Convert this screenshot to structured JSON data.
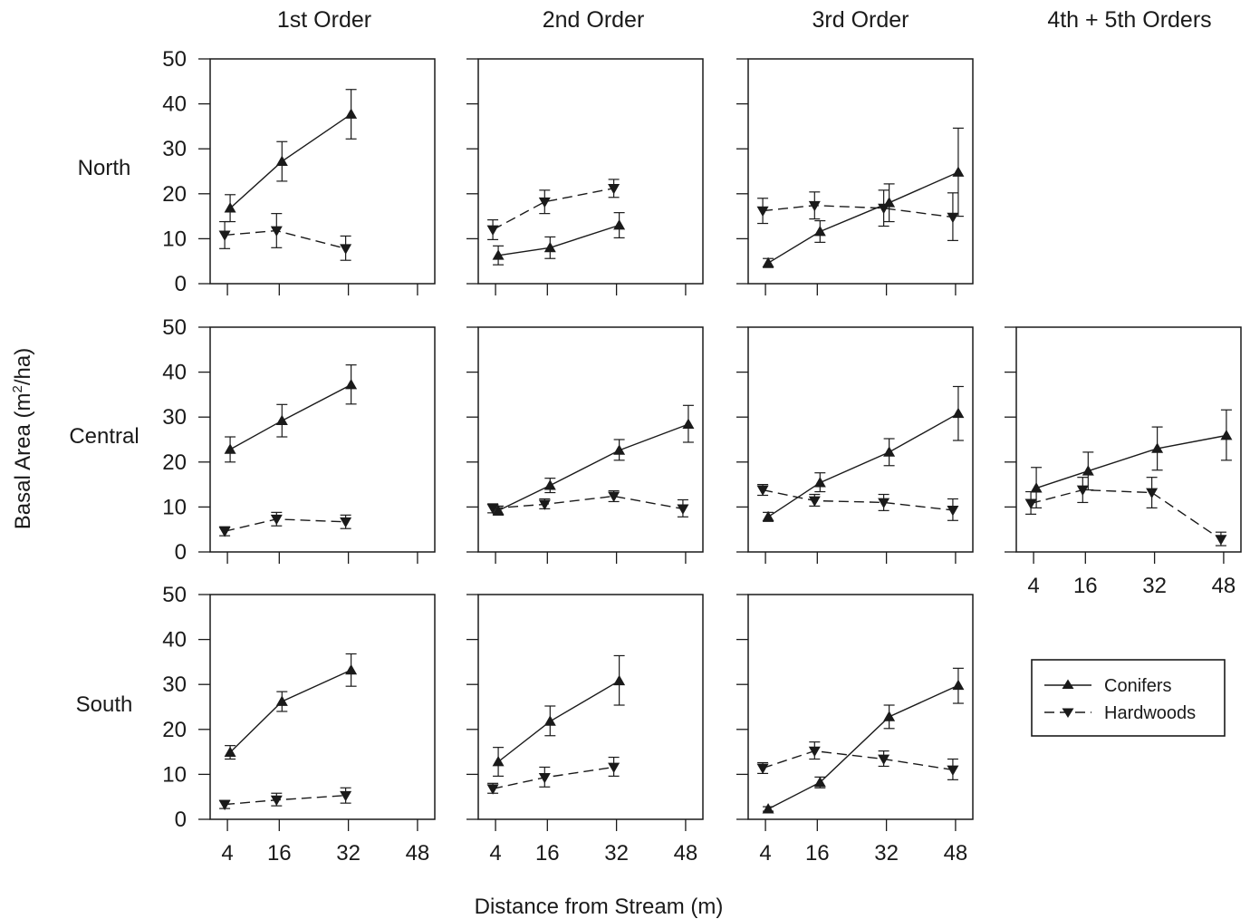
{
  "figure": {
    "xlabel": "Distance from Stream (m)",
    "ylabel": "Basal Area (m²/ha)",
    "ylabel_main": "Basal Area (m",
    "ylabel_sup": "2",
    "ylabel_end": "/ha)",
    "legend": {
      "conifers": "Conifers",
      "hardwoods": "Hardwoods",
      "placement": "bottom-right"
    }
  },
  "columns": [
    "1st Order",
    "2nd Order",
    "3rd Order",
    "4th + 5th Orders"
  ],
  "rows": [
    "North",
    "Central",
    "South"
  ],
  "chart_data": {
    "type": "line",
    "layout": "faceted grid (rows: region, columns: stream order)",
    "x_ticks": [
      4,
      16,
      32,
      48
    ],
    "y_ticks": [
      0,
      10,
      20,
      30,
      40,
      50
    ],
    "ylim": [
      0,
      50
    ],
    "xlim": [
      0,
      52
    ],
    "grid": false,
    "error_bars": true,
    "series_names": [
      "Conifers",
      "Hardwoods"
    ],
    "panels": [
      {
        "row": "North",
        "column": "1st Order",
        "conifers": [
          {
            "x": 4,
            "y": 16.8,
            "lo": 13.8,
            "hi": 19.8
          },
          {
            "x": 16,
            "y": 27.2,
            "lo": 22.8,
            "hi": 31.6
          },
          {
            "x": 32,
            "y": 37.7,
            "lo": 32.2,
            "hi": 43.2
          }
        ],
        "hardwoods": [
          {
            "x": 4,
            "y": 10.8,
            "lo": 7.8,
            "hi": 13.8
          },
          {
            "x": 16,
            "y": 11.8,
            "lo": 8.0,
            "hi": 15.6
          },
          {
            "x": 32,
            "y": 7.8,
            "lo": 5.2,
            "hi": 10.6
          }
        ]
      },
      {
        "row": "North",
        "column": "2nd Order",
        "conifers": [
          {
            "x": 4,
            "y": 6.3,
            "lo": 4.2,
            "hi": 8.4
          },
          {
            "x": 16,
            "y": 8.0,
            "lo": 5.6,
            "hi": 10.4
          },
          {
            "x": 32,
            "y": 13.0,
            "lo": 10.2,
            "hi": 15.8
          }
        ],
        "hardwoods": [
          {
            "x": 4,
            "y": 12.0,
            "lo": 9.8,
            "hi": 14.2
          },
          {
            "x": 16,
            "y": 18.2,
            "lo": 15.6,
            "hi": 20.8
          },
          {
            "x": 32,
            "y": 21.2,
            "lo": 19.2,
            "hi": 23.2
          }
        ]
      },
      {
        "row": "North",
        "column": "3rd Order",
        "conifers": [
          {
            "x": 4,
            "y": 4.6,
            "lo": 3.6,
            "hi": 5.6
          },
          {
            "x": 16,
            "y": 11.6,
            "lo": 9.2,
            "hi": 14.0
          },
          {
            "x": 32,
            "y": 18.0,
            "lo": 13.8,
            "hi": 22.2
          },
          {
            "x": 48,
            "y": 24.8,
            "lo": 15.0,
            "hi": 34.6
          }
        ],
        "hardwoods": [
          {
            "x": 4,
            "y": 16.2,
            "lo": 13.4,
            "hi": 19.0
          },
          {
            "x": 16,
            "y": 17.4,
            "lo": 14.4,
            "hi": 20.4
          },
          {
            "x": 32,
            "y": 16.8,
            "lo": 12.8,
            "hi": 20.8
          },
          {
            "x": 48,
            "y": 14.8,
            "lo": 9.6,
            "hi": 20.2
          }
        ]
      },
      {
        "row": "Central",
        "column": "1st Order",
        "conifers": [
          {
            "x": 4,
            "y": 22.8,
            "lo": 20.0,
            "hi": 25.6
          },
          {
            "x": 16,
            "y": 29.2,
            "lo": 25.6,
            "hi": 32.8
          },
          {
            "x": 32,
            "y": 37.2,
            "lo": 32.9,
            "hi": 41.6
          }
        ],
        "hardwoods": [
          {
            "x": 4,
            "y": 4.6,
            "lo": 3.6,
            "hi": 5.6
          },
          {
            "x": 16,
            "y": 7.3,
            "lo": 5.8,
            "hi": 8.8
          },
          {
            "x": 32,
            "y": 6.7,
            "lo": 5.2,
            "hi": 8.2
          }
        ]
      },
      {
        "row": "Central",
        "column": "2nd Order",
        "conifers": [
          {
            "x": 4,
            "y": 9.2,
            "lo": 8.2,
            "hi": 10.2
          },
          {
            "x": 16,
            "y": 14.8,
            "lo": 13.2,
            "hi": 16.4
          },
          {
            "x": 32,
            "y": 22.6,
            "lo": 20.4,
            "hi": 25.0
          },
          {
            "x": 48,
            "y": 28.4,
            "lo": 24.4,
            "hi": 32.6
          }
        ],
        "hardwoods": [
          {
            "x": 4,
            "y": 9.7,
            "lo": 8.7,
            "hi": 10.7
          },
          {
            "x": 16,
            "y": 10.6,
            "lo": 9.6,
            "hi": 11.8
          },
          {
            "x": 32,
            "y": 12.4,
            "lo": 11.2,
            "hi": 13.6
          },
          {
            "x": 48,
            "y": 9.6,
            "lo": 7.8,
            "hi": 11.6
          }
        ]
      },
      {
        "row": "Central",
        "column": "3rd Order",
        "conifers": [
          {
            "x": 4,
            "y": 7.8,
            "lo": 6.8,
            "hi": 8.8
          },
          {
            "x": 16,
            "y": 15.4,
            "lo": 13.4,
            "hi": 17.6
          },
          {
            "x": 32,
            "y": 22.2,
            "lo": 19.2,
            "hi": 25.2
          },
          {
            "x": 48,
            "y": 30.8,
            "lo": 24.8,
            "hi": 36.8
          }
        ],
        "hardwoods": [
          {
            "x": 4,
            "y": 13.8,
            "lo": 12.6,
            "hi": 15.0
          },
          {
            "x": 16,
            "y": 11.4,
            "lo": 10.2,
            "hi": 12.8
          },
          {
            "x": 32,
            "y": 11.0,
            "lo": 9.2,
            "hi": 12.8
          },
          {
            "x": 48,
            "y": 9.3,
            "lo": 7.0,
            "hi": 11.8
          }
        ]
      },
      {
        "row": "Central",
        "column": "4th + 5th Orders",
        "conifers": [
          {
            "x": 4,
            "y": 14.2,
            "lo": 9.8,
            "hi": 18.8
          },
          {
            "x": 16,
            "y": 18.0,
            "lo": 13.8,
            "hi": 22.2
          },
          {
            "x": 32,
            "y": 23.0,
            "lo": 18.2,
            "hi": 27.8
          },
          {
            "x": 48,
            "y": 25.9,
            "lo": 20.4,
            "hi": 31.6
          }
        ],
        "hardwoods": [
          {
            "x": 4,
            "y": 10.8,
            "lo": 8.4,
            "hi": 13.4
          },
          {
            "x": 16,
            "y": 13.8,
            "lo": 11.0,
            "hi": 16.6
          },
          {
            "x": 32,
            "y": 13.2,
            "lo": 9.8,
            "hi": 16.6
          },
          {
            "x": 48,
            "y": 2.8,
            "lo": 1.4,
            "hi": 4.4
          }
        ]
      },
      {
        "row": "South",
        "column": "1st Order",
        "conifers": [
          {
            "x": 4,
            "y": 14.9,
            "lo": 13.4,
            "hi": 16.4
          },
          {
            "x": 16,
            "y": 26.2,
            "lo": 24.0,
            "hi": 28.4
          },
          {
            "x": 32,
            "y": 33.2,
            "lo": 29.6,
            "hi": 36.8
          }
        ],
        "hardwoods": [
          {
            "x": 4,
            "y": 3.3,
            "lo": 2.4,
            "hi": 4.2
          },
          {
            "x": 16,
            "y": 4.3,
            "lo": 3.0,
            "hi": 5.8
          },
          {
            "x": 32,
            "y": 5.3,
            "lo": 3.6,
            "hi": 7.0
          }
        ]
      },
      {
        "row": "South",
        "column": "2nd Order",
        "conifers": [
          {
            "x": 4,
            "y": 12.8,
            "lo": 9.6,
            "hi": 16.0
          },
          {
            "x": 16,
            "y": 21.8,
            "lo": 18.6,
            "hi": 25.2
          },
          {
            "x": 32,
            "y": 30.8,
            "lo": 25.4,
            "hi": 36.4
          }
        ],
        "hardwoods": [
          {
            "x": 4,
            "y": 6.8,
            "lo": 5.8,
            "hi": 8.0
          },
          {
            "x": 16,
            "y": 9.3,
            "lo": 7.2,
            "hi": 11.6
          },
          {
            "x": 32,
            "y": 11.6,
            "lo": 9.6,
            "hi": 13.8
          }
        ]
      },
      {
        "row": "South",
        "column": "3rd Order",
        "conifers": [
          {
            "x": 4,
            "y": 2.3,
            "lo": 1.8,
            "hi": 2.8
          },
          {
            "x": 16,
            "y": 8.2,
            "lo": 7.0,
            "hi": 9.4
          },
          {
            "x": 32,
            "y": 22.8,
            "lo": 20.2,
            "hi": 25.4
          },
          {
            "x": 48,
            "y": 29.8,
            "lo": 25.8,
            "hi": 33.6
          }
        ],
        "hardwoods": [
          {
            "x": 4,
            "y": 11.4,
            "lo": 10.2,
            "hi": 12.6
          },
          {
            "x": 16,
            "y": 15.2,
            "lo": 13.4,
            "hi": 17.2
          },
          {
            "x": 32,
            "y": 13.4,
            "lo": 11.8,
            "hi": 15.2
          },
          {
            "x": 48,
            "y": 11.0,
            "lo": 8.8,
            "hi": 13.4
          }
        ]
      }
    ]
  }
}
